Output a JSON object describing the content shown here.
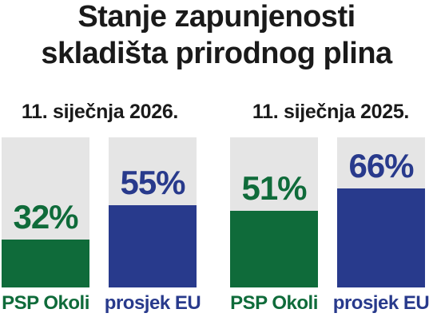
{
  "header": {
    "title_line1": "Stanje zapunjenosti",
    "title_line2": "skladišta prirodnog plina"
  },
  "colors": {
    "psp": "#0f6b3a",
    "eu": "#283a8c",
    "track": "#e5e5e5"
  },
  "chart_data": [
    {
      "type": "bar",
      "title": "11. siječnja 2026.",
      "categories": [
        "PSP Okoli",
        "prosjek EU"
      ],
      "values": [
        32,
        55
      ],
      "value_labels": [
        "32%",
        "55%"
      ],
      "ylim": [
        0,
        100
      ]
    },
    {
      "type": "bar",
      "title": "11. siječnja 2025.",
      "categories": [
        "PSP Okoli",
        "prosjek EU"
      ],
      "values": [
        51,
        66
      ],
      "value_labels": [
        "51%",
        "66%"
      ],
      "ylim": [
        0,
        100
      ]
    }
  ]
}
